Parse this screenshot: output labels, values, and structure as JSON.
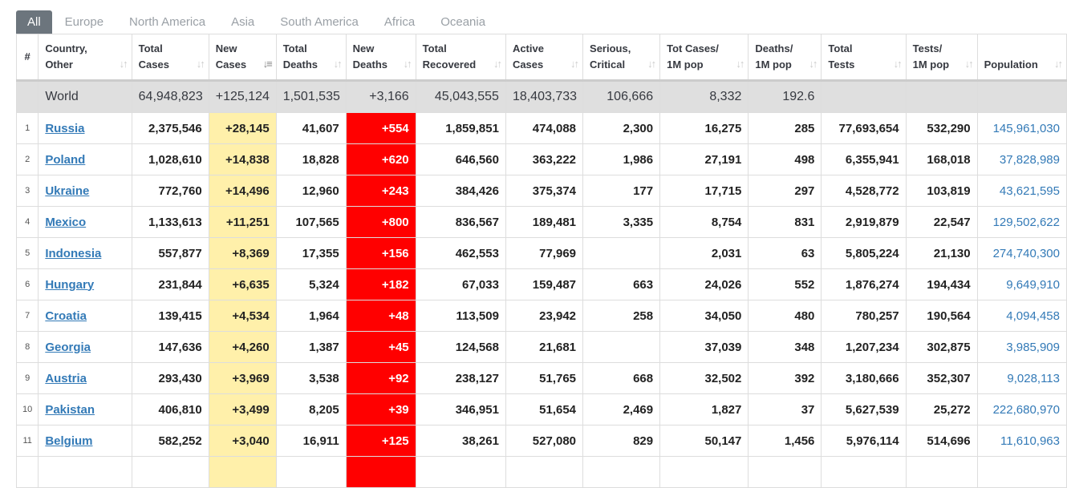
{
  "tabs": [
    "All",
    "Europe",
    "North America",
    "Asia",
    "South America",
    "Africa",
    "Oceania"
  ],
  "active_tab": "All",
  "columns": [
    {
      "l1": "#",
      "l2": ""
    },
    {
      "l1": "Country,",
      "l2": "Other"
    },
    {
      "l1": "Total",
      "l2": "Cases"
    },
    {
      "l1": "New",
      "l2": "Cases"
    },
    {
      "l1": "Total",
      "l2": "Deaths"
    },
    {
      "l1": "New",
      "l2": "Deaths"
    },
    {
      "l1": "Total",
      "l2": "Recovered"
    },
    {
      "l1": "Active",
      "l2": "Cases"
    },
    {
      "l1": "Serious,",
      "l2": "Critical"
    },
    {
      "l1": "Tot Cases/",
      "l2": "1M pop"
    },
    {
      "l1": "Deaths/",
      "l2": "1M pop"
    },
    {
      "l1": "Total",
      "l2": "Tests"
    },
    {
      "l1": "Tests/",
      "l2": "1M pop"
    },
    {
      "l1": "",
      "l2": "Population"
    }
  ],
  "sorted_column": "New Cases",
  "world": [
    "",
    "World",
    "64,948,823",
    "+125,124",
    "1,501,535",
    "+3,166",
    "45,043,555",
    "18,403,733",
    "106,666",
    "8,332",
    "192.6",
    "",
    "",
    ""
  ],
  "rows": [
    [
      "1",
      "Russia",
      "2,375,546",
      "+28,145",
      "41,607",
      "+554",
      "1,859,851",
      "474,088",
      "2,300",
      "16,275",
      "285",
      "77,693,654",
      "532,290",
      "145,961,030"
    ],
    [
      "2",
      "Poland",
      "1,028,610",
      "+14,838",
      "18,828",
      "+620",
      "646,560",
      "363,222",
      "1,986",
      "27,191",
      "498",
      "6,355,941",
      "168,018",
      "37,828,989"
    ],
    [
      "3",
      "Ukraine",
      "772,760",
      "+14,496",
      "12,960",
      "+243",
      "384,426",
      "375,374",
      "177",
      "17,715",
      "297",
      "4,528,772",
      "103,819",
      "43,621,595"
    ],
    [
      "4",
      "Mexico",
      "1,133,613",
      "+11,251",
      "107,565",
      "+800",
      "836,567",
      "189,481",
      "3,335",
      "8,754",
      "831",
      "2,919,879",
      "22,547",
      "129,502,622"
    ],
    [
      "5",
      "Indonesia",
      "557,877",
      "+8,369",
      "17,355",
      "+156",
      "462,553",
      "77,969",
      "",
      "2,031",
      "63",
      "5,805,224",
      "21,130",
      "274,740,300"
    ],
    [
      "6",
      "Hungary",
      "231,844",
      "+6,635",
      "5,324",
      "+182",
      "67,033",
      "159,487",
      "663",
      "24,026",
      "552",
      "1,876,274",
      "194,434",
      "9,649,910"
    ],
    [
      "7",
      "Croatia",
      "139,415",
      "+4,534",
      "1,964",
      "+48",
      "113,509",
      "23,942",
      "258",
      "34,050",
      "480",
      "780,257",
      "190,564",
      "4,094,458"
    ],
    [
      "8",
      "Georgia",
      "147,636",
      "+4,260",
      "1,387",
      "+45",
      "124,568",
      "21,681",
      "",
      "37,039",
      "348",
      "1,207,234",
      "302,875",
      "3,985,909"
    ],
    [
      "9",
      "Austria",
      "293,430",
      "+3,969",
      "3,538",
      "+92",
      "238,127",
      "51,765",
      "668",
      "32,502",
      "392",
      "3,180,666",
      "352,307",
      "9,028,113"
    ],
    [
      "10",
      "Pakistan",
      "406,810",
      "+3,499",
      "8,205",
      "+39",
      "346,951",
      "51,654",
      "2,469",
      "1,827",
      "37",
      "5,627,539",
      "25,272",
      "222,680,970"
    ],
    [
      "11",
      "Belgium",
      "582,252",
      "+3,040",
      "16,911",
      "+125",
      "38,261",
      "527,080",
      "829",
      "50,147",
      "1,456",
      "5,976,114",
      "514,696",
      "11,610,963"
    ]
  ],
  "colors": {
    "new_cases_bg": "#fff0aa",
    "new_deaths_bg": "#ff0000",
    "link": "#337ab7",
    "world_bg": "#dfdfdf",
    "active_tab_bg": "#6c757d"
  }
}
